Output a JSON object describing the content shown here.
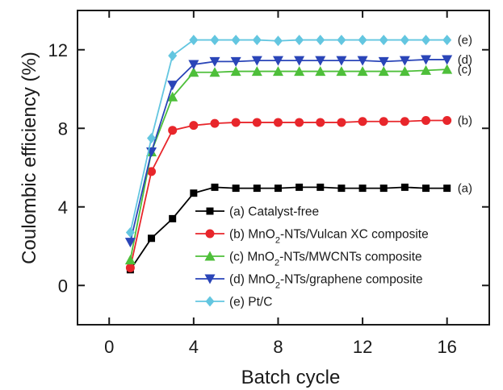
{
  "chart_data": {
    "type": "line",
    "xlabel": "Batch cycle",
    "ylabel": "Coulombic efficiency (%)",
    "xlim": [
      -1.5,
      18
    ],
    "ylim": [
      -2,
      14
    ],
    "xticks": [
      0,
      4,
      8,
      12,
      16
    ],
    "yticks": [
      0,
      4,
      8,
      12
    ],
    "x": [
      1,
      2,
      3,
      4,
      5,
      6,
      7,
      8,
      9,
      10,
      11,
      12,
      13,
      14,
      15,
      16
    ],
    "legend_position": "bottom-right",
    "series": [
      {
        "name": "(a) Catalyst-free",
        "tag": "(a)",
        "color": "#000000",
        "marker": "square",
        "values": [
          0.8,
          2.4,
          3.4,
          4.7,
          5.0,
          4.95,
          4.95,
          4.95,
          5.0,
          5.0,
          4.95,
          4.95,
          4.95,
          5.0,
          4.95,
          4.95
        ]
      },
      {
        "name": "(b) MnO2-NTs/Vulcan XC composite",
        "tag": "(b)",
        "color": "#e8262b",
        "marker": "circle",
        "values": [
          0.9,
          5.8,
          7.9,
          8.15,
          8.25,
          8.3,
          8.3,
          8.3,
          8.3,
          8.3,
          8.3,
          8.35,
          8.35,
          8.35,
          8.4,
          8.4
        ]
      },
      {
        "name": "(c) MnO2-NTs/MWCNTs composite",
        "tag": "(c)",
        "color": "#4ebf3a",
        "marker": "triangle-up",
        "values": [
          1.3,
          6.8,
          9.6,
          10.85,
          10.85,
          10.9,
          10.9,
          10.9,
          10.9,
          10.9,
          10.9,
          10.9,
          10.9,
          10.9,
          10.95,
          11.0
        ]
      },
      {
        "name": "(d) MnO2-NTs/graphene composite",
        "tag": "(d)",
        "color": "#2a45b8",
        "marker": "triangle-down",
        "values": [
          2.2,
          6.8,
          10.2,
          11.25,
          11.4,
          11.4,
          11.45,
          11.45,
          11.45,
          11.45,
          11.45,
          11.45,
          11.4,
          11.45,
          11.5,
          11.5
        ]
      },
      {
        "name": "(e) Pt/C",
        "tag": "(e)",
        "color": "#63c6e0",
        "marker": "diamond",
        "values": [
          2.7,
          7.5,
          11.7,
          12.5,
          12.5,
          12.5,
          12.5,
          12.45,
          12.5,
          12.5,
          12.5,
          12.5,
          12.5,
          12.5,
          12.5,
          12.5
        ]
      }
    ]
  }
}
